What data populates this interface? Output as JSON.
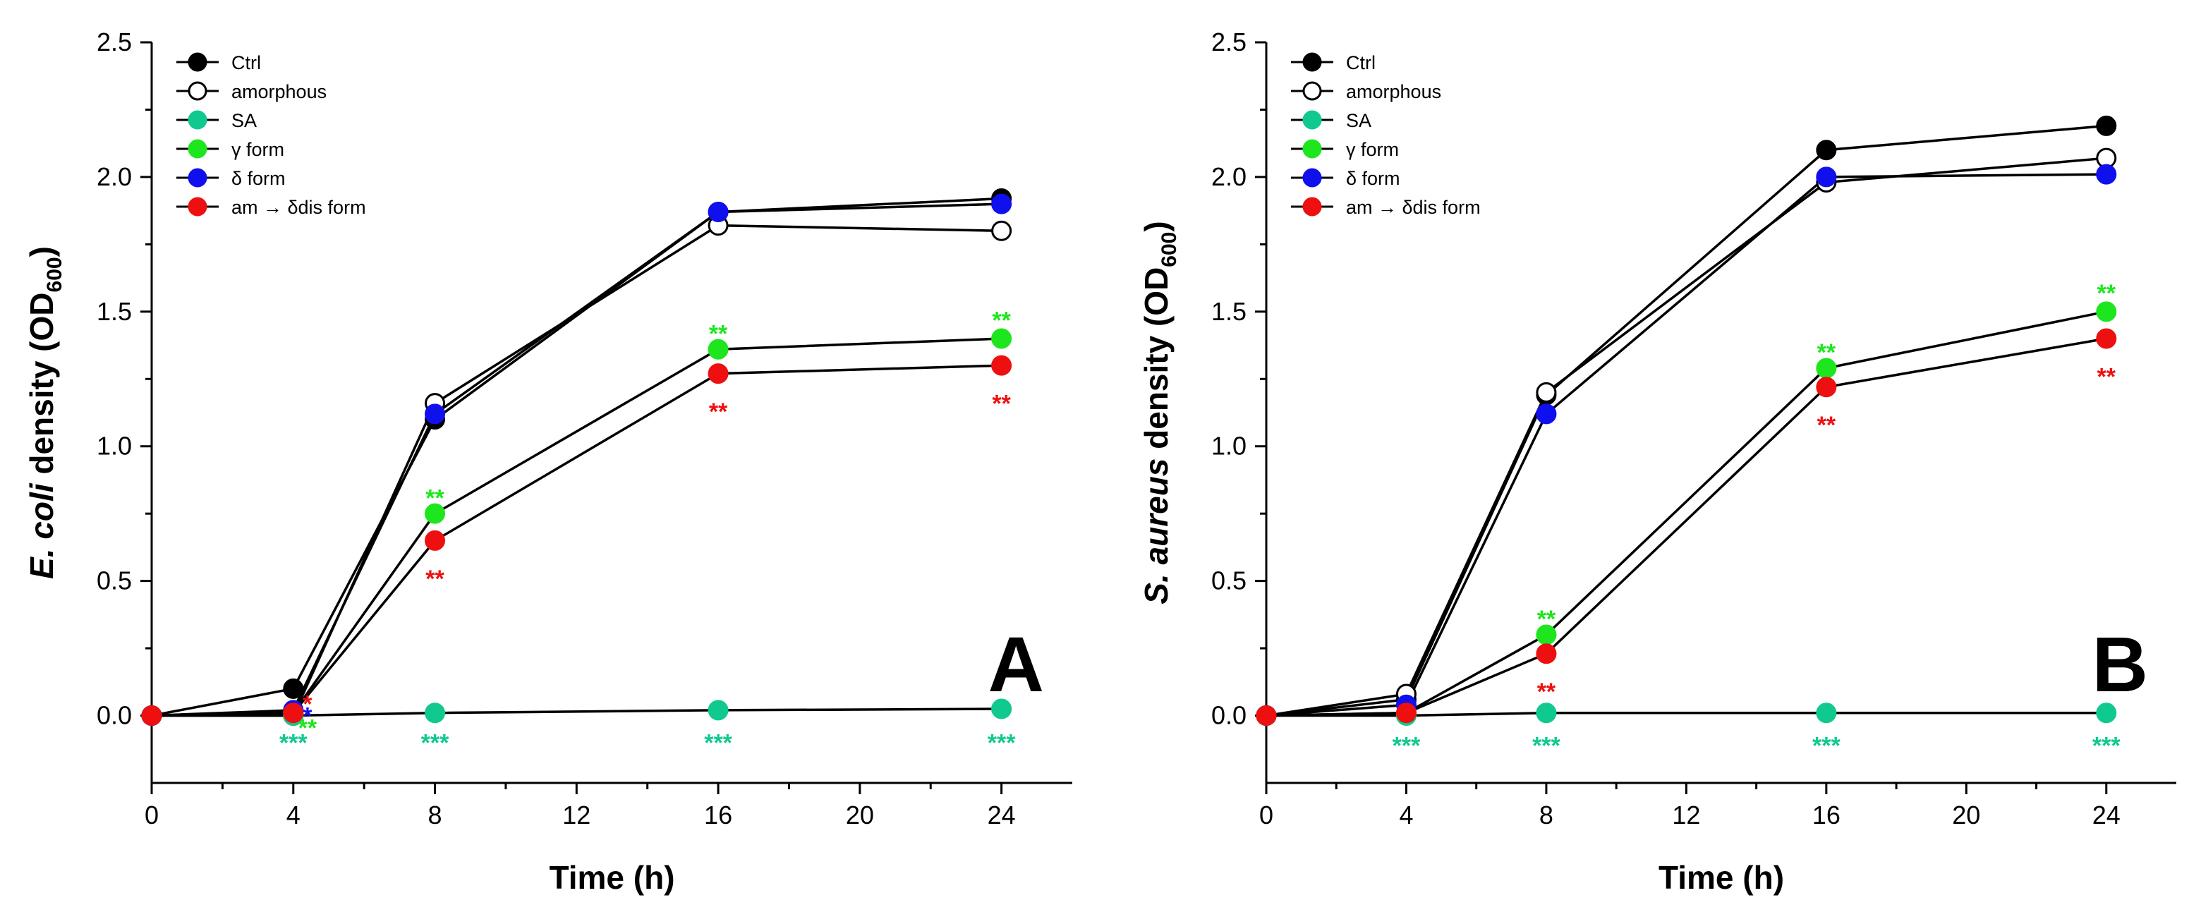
{
  "chart_data": [
    {
      "type": "line",
      "panel": "A",
      "xlabel": "Time (h)",
      "ylabel": {
        "italic": "E. coli",
        "plain": " density (OD",
        "sub": "600",
        "close": ")"
      },
      "xlim": [
        0,
        26
      ],
      "ylim": [
        -0.25,
        2.5
      ],
      "xticks": [
        "0",
        "4",
        "8",
        "12",
        "16",
        "20",
        "24"
      ],
      "yticks": [
        "0.0",
        "0.5",
        "1.0",
        "1.5",
        "2.0",
        "2.5"
      ],
      "x": [
        0,
        4,
        8,
        16,
        24
      ],
      "series": [
        {
          "name": "Ctrl",
          "color": "#000000",
          "fill": "#000000",
          "values": [
            0.0,
            0.1,
            1.1,
            1.87,
            1.92
          ]
        },
        {
          "name": "amorphous",
          "color": "#000000",
          "fill": "#ffffff",
          "values": [
            0.0,
            0.0,
            1.16,
            1.82,
            1.8
          ]
        },
        {
          "name": "SA",
          "color": "#000000",
          "fill": "#10c98f",
          "values": [
            0.0,
            0.0,
            0.01,
            0.02,
            0.025
          ]
        },
        {
          "name": "γ form",
          "color": "#000000",
          "fill": "#1ee61e",
          "values": [
            0.0,
            0.01,
            0.75,
            1.36,
            1.4
          ]
        },
        {
          "name": "δ form",
          "color": "#000000",
          "fill": "#1010ee",
          "values": [
            0.0,
            0.02,
            1.12,
            1.87,
            1.9
          ]
        },
        {
          "name": "am → δdis form",
          "color": "#000000",
          "fill": "#ee1010",
          "values": [
            0.0,
            0.01,
            0.65,
            1.27,
            1.3
          ]
        }
      ],
      "annotations": [
        {
          "text": "*",
          "x": 4.4,
          "y": 0.045,
          "color": "#ee1010"
        },
        {
          "text": "*",
          "x": 4.4,
          "y": 0.0,
          "color": "#1010ee"
        },
        {
          "text": "**",
          "x": 4.4,
          "y": -0.045,
          "color": "#1ee61e"
        },
        {
          "text": "***",
          "x": 4,
          "y": -0.1,
          "color": "#10c98f"
        },
        {
          "text": "***",
          "x": 8,
          "y": -0.1,
          "color": "#10c98f"
        },
        {
          "text": "***",
          "x": 16,
          "y": -0.1,
          "color": "#10c98f"
        },
        {
          "text": "***",
          "x": 24,
          "y": -0.1,
          "color": "#10c98f"
        },
        {
          "text": "**",
          "x": 8,
          "y": 0.81,
          "color": "#1ee61e"
        },
        {
          "text": "**",
          "x": 8,
          "y": 0.51,
          "color": "#ee1010"
        },
        {
          "text": "**",
          "x": 16,
          "y": 1.42,
          "color": "#1ee61e"
        },
        {
          "text": "**",
          "x": 16,
          "y": 1.13,
          "color": "#ee1010"
        },
        {
          "text": "**",
          "x": 24,
          "y": 1.47,
          "color": "#1ee61e"
        },
        {
          "text": "**",
          "x": 24,
          "y": 1.16,
          "color": "#ee1010"
        }
      ]
    },
    {
      "type": "line",
      "panel": "B",
      "xlabel": "Time (h)",
      "ylabel": {
        "italic": "S. aureus",
        "plain": " density (OD",
        "sub": "600",
        "close": ")"
      },
      "xlim": [
        0,
        26
      ],
      "ylim": [
        -0.25,
        2.5
      ],
      "xticks": [
        "0",
        "4",
        "8",
        "12",
        "16",
        "20",
        "24"
      ],
      "yticks": [
        "0.0",
        "0.5",
        "1.0",
        "1.5",
        "2.0",
        "2.5"
      ],
      "x": [
        0,
        4,
        8,
        16,
        24
      ],
      "series": [
        {
          "name": "Ctrl",
          "color": "#000000",
          "fill": "#000000",
          "values": [
            0.0,
            0.06,
            1.19,
            2.1,
            2.19
          ]
        },
        {
          "name": "amorphous",
          "color": "#000000",
          "fill": "#ffffff",
          "values": [
            0.0,
            0.08,
            1.2,
            1.98,
            2.07
          ]
        },
        {
          "name": "SA",
          "color": "#000000",
          "fill": "#10c98f",
          "values": [
            0.0,
            0.0,
            0.01,
            0.01,
            0.01
          ]
        },
        {
          "name": "γ form",
          "color": "#000000",
          "fill": "#1ee61e",
          "values": [
            0.0,
            0.01,
            0.3,
            1.29,
            1.5
          ]
        },
        {
          "name": "δ form",
          "color": "#000000",
          "fill": "#1010ee",
          "values": [
            0.0,
            0.04,
            1.12,
            2.0,
            2.01
          ]
        },
        {
          "name": "am → δdis form",
          "color": "#000000",
          "fill": "#ee1010",
          "values": [
            0.0,
            0.01,
            0.23,
            1.22,
            1.4
          ]
        }
      ],
      "annotations": [
        {
          "text": "***",
          "x": 4,
          "y": -0.11,
          "color": "#10c98f"
        },
        {
          "text": "***",
          "x": 8,
          "y": -0.11,
          "color": "#10c98f"
        },
        {
          "text": "***",
          "x": 16,
          "y": -0.11,
          "color": "#10c98f"
        },
        {
          "text": "***",
          "x": 24,
          "y": -0.11,
          "color": "#10c98f"
        },
        {
          "text": "**",
          "x": 8,
          "y": 0.36,
          "color": "#1ee61e"
        },
        {
          "text": "**",
          "x": 8,
          "y": 0.09,
          "color": "#ee1010"
        },
        {
          "text": "**",
          "x": 16,
          "y": 1.35,
          "color": "#1ee61e"
        },
        {
          "text": "**",
          "x": 16,
          "y": 1.08,
          "color": "#ee1010"
        },
        {
          "text": "**",
          "x": 24,
          "y": 1.57,
          "color": "#1ee61e"
        },
        {
          "text": "**",
          "x": 24,
          "y": 1.26,
          "color": "#ee1010"
        }
      ]
    }
  ]
}
